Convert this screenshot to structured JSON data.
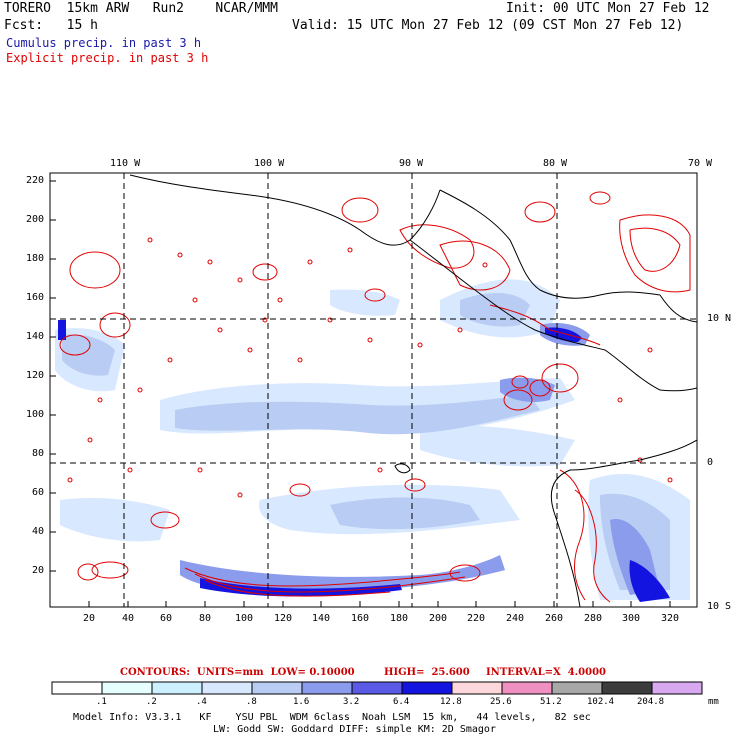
{
  "header": {
    "model": "TORERO  15km ARW   Run2    NCAR/MMM",
    "init": "Init: 00 UTC Mon 27 Feb 12",
    "fcst": "Fcst:   15 h",
    "valid": "Valid: 15 UTC Mon 27 Feb 12 (09 CST Mon 27 Feb 12)",
    "legend_cumulus": "Cumulus precip. in past 3 h",
    "legend_explicit": "Explicit precip. in past 3 h",
    "cumulus_color": "#1a1aa8",
    "explicit_color": "#e00000"
  },
  "map": {
    "top_lon_labels": [
      "110 W",
      "100 W",
      "90 W",
      "80 W",
      "70 W"
    ],
    "right_lat_labels": [
      "10 N",
      "0",
      "10 S"
    ],
    "y_ticks": [
      "220",
      "200",
      "180",
      "160",
      "140",
      "120",
      "100",
      "80",
      "60",
      "40",
      "20"
    ],
    "x_ticks": [
      "20",
      "40",
      "60",
      "80",
      "100",
      "120",
      "140",
      "160",
      "180",
      "200",
      "220",
      "240",
      "260",
      "280",
      "300",
      "320"
    ]
  },
  "contour_info": {
    "contours": "CONTOURS:  UNITS=mm  LOW= 0.10000",
    "high": "HIGH=  25.600",
    "interval": "INTERVAL=X  4.0000"
  },
  "colorbar": {
    "labels": [
      ".1",
      ".2",
      ".4",
      ".8",
      "1.6",
      "3.2",
      "6.4",
      "12.8",
      "25.6",
      "51.2",
      "102.4",
      "204.8"
    ],
    "units": "mm",
    "colors": [
      "#ffffff",
      "#e6ffff",
      "#ccf0ff",
      "#d8e8ff",
      "#b8ccf4",
      "#8c9cec",
      "#5a5ae6",
      "#1414e0",
      "#fcd8dc",
      "#f090c0",
      "#a8a8a8",
      "#3c3c3c",
      "#d8a8f0"
    ]
  },
  "footer": {
    "line1": "Model Info: V3.3.1   KF    YSU PBL  WDM 6class  Noah LSM  15 km,   44 levels,   82 sec",
    "line2": "LW: Godd SW: Goddard DIFF: simple KM: 2D Smagor"
  }
}
